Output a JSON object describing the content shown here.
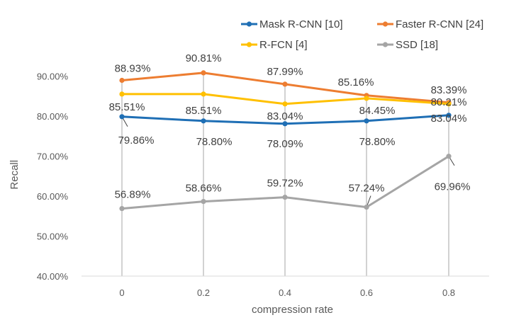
{
  "chart_data": {
    "type": "line",
    "x": [
      0,
      0.2,
      0.4,
      0.6,
      0.8
    ],
    "x_tick_labels": [
      "0",
      "0.2",
      "0.4",
      "0.6",
      "0.8"
    ],
    "xlabel": "compression rate",
    "ylabel": "Recall",
    "ylim": [
      0.4,
      0.95
    ],
    "y_tick_labels": [
      "40.00%",
      "50.00%",
      "60.00%",
      "70.00%",
      "80.00%",
      "90.00%"
    ],
    "y_ticks": [
      0.4,
      0.5,
      0.6,
      0.7,
      0.8,
      0.9
    ],
    "grid": "vertical drop lines at each x",
    "legend_position": "top-right",
    "series": [
      {
        "name": "Mask R-CNN [10]",
        "color": "#1F6FB5",
        "values": [
          0.7986,
          0.788,
          0.7809,
          0.788,
          0.8021
        ],
        "labels": [
          "79.86%",
          "78.80%",
          "78.09%",
          "78.80%",
          "80.21%"
        ]
      },
      {
        "name": "Faster R-CNN [24]",
        "color": "#ED7D31",
        "values": [
          0.8893,
          0.9081,
          0.8799,
          0.8516,
          0.8339
        ],
        "labels": [
          "88.93%",
          "90.81%",
          "87.99%",
          "85.16%",
          "83.39%"
        ]
      },
      {
        "name": "R-FCN [4]",
        "color": "#FFC000",
        "values": [
          0.8551,
          0.8551,
          0.8304,
          0.8445,
          0.8304
        ],
        "labels": [
          "85.51%",
          "85.51%",
          "83.04%",
          "84.45%",
          "83.04%"
        ]
      },
      {
        "name": "SSD [18]",
        "color": "#A5A5A5",
        "values": [
          0.5689,
          0.5866,
          0.5972,
          0.5724,
          0.6996
        ],
        "labels": [
          "56.89%",
          "58.66%",
          "59.72%",
          "57.24%",
          "69.96%"
        ]
      }
    ]
  }
}
